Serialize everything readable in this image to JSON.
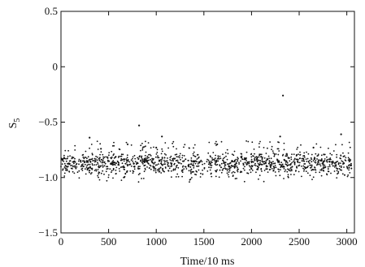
{
  "chart_data": {
    "type": "scatter",
    "xlabel": "Time/10 ms",
    "ylabel": "S",
    "ylabel_subscript": "5",
    "xlim": [
      0,
      3080
    ],
    "ylim": [
      -1.5,
      0.5
    ],
    "xticks": [
      0,
      500,
      1000,
      1500,
      2000,
      2500,
      3000
    ],
    "yticks": [
      0.5,
      0,
      -0.5,
      -1.0,
      -1.5
    ],
    "ytick_labels": [
      "0.5",
      "0",
      "−0.5",
      "−1.0",
      "−1.5"
    ],
    "grid": false,
    "legend": "none",
    "band": {
      "x_start": 0,
      "x_end": 3050,
      "n_points": 1400,
      "center": -0.87,
      "spread": 0.05
    },
    "outliers": [
      {
        "x": 300,
        "y": -0.64
      },
      {
        "x": 420,
        "y": -0.74
      },
      {
        "x": 700,
        "y": -0.7
      },
      {
        "x": 820,
        "y": -0.53
      },
      {
        "x": 1000,
        "y": -0.73
      },
      {
        "x": 1060,
        "y": -0.63
      },
      {
        "x": 1640,
        "y": -0.7
      },
      {
        "x": 2300,
        "y": -0.63
      },
      {
        "x": 2330,
        "y": -0.26
      },
      {
        "x": 2650,
        "y": -0.73
      },
      {
        "x": 2940,
        "y": -0.61
      }
    ],
    "marker_color": "#111111"
  }
}
